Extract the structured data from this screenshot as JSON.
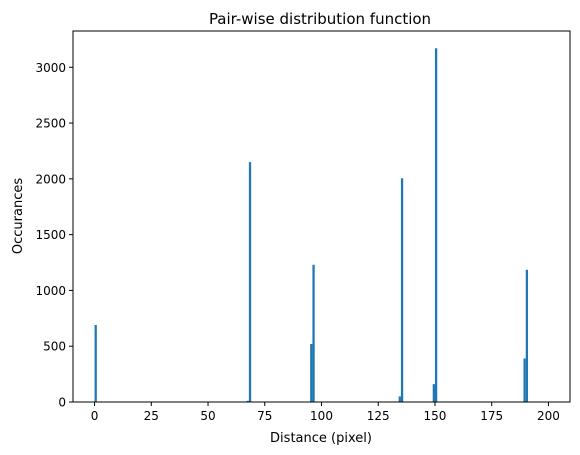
{
  "chart_data": {
    "type": "bar",
    "title": "Pair-wise distribution function",
    "xlabel": "Distance (pixel)",
    "ylabel": "Occurances",
    "xlim": [
      -9.5,
      209.5
    ],
    "ylim": [
      0,
      3325
    ],
    "grid": false,
    "legend": "none",
    "colors": {
      "bars": "#1f77b4",
      "axes": "#000000",
      "background": "#ffffff"
    },
    "x_ticks": [
      {
        "value": 0,
        "label": "0"
      },
      {
        "value": 25,
        "label": "25"
      },
      {
        "value": 50,
        "label": "50"
      },
      {
        "value": 75,
        "label": "75"
      },
      {
        "value": 100,
        "label": "100"
      },
      {
        "value": 125,
        "label": "125"
      },
      {
        "value": 150,
        "label": "150"
      },
      {
        "value": 175,
        "label": "175"
      },
      {
        "value": 200,
        "label": "200"
      }
    ],
    "y_ticks": [
      {
        "value": 0,
        "label": "0"
      },
      {
        "value": 500,
        "label": "500"
      },
      {
        "value": 1000,
        "label": "1000"
      },
      {
        "value": 1500,
        "label": "1500"
      },
      {
        "value": 2000,
        "label": "2000"
      },
      {
        "value": 2500,
        "label": "2500"
      },
      {
        "value": 3000,
        "label": "3000"
      }
    ],
    "bin_width": 1,
    "x": [
      0,
      67,
      68,
      95,
      96,
      134,
      135,
      149,
      150,
      189,
      190
    ],
    "values": [
      690,
      10,
      2150,
      520,
      1230,
      50,
      2005,
      160,
      3170,
      390,
      1185
    ]
  }
}
